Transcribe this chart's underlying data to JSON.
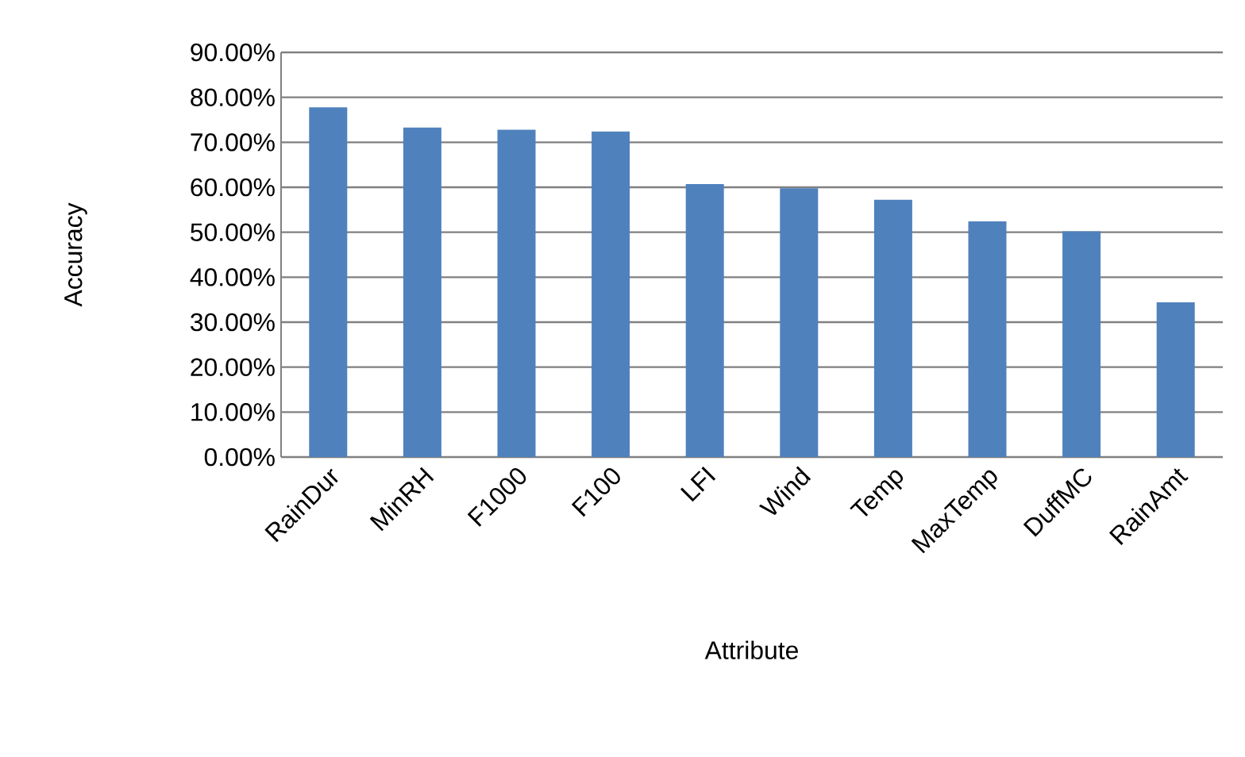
{
  "chart_data": {
    "type": "bar",
    "xlabel": "Attribute",
    "ylabel": "Accuracy",
    "categories": [
      "RainDur",
      "MinRH",
      "F1000",
      "F100",
      "LFI",
      "Wind",
      "Temp",
      "MaxTemp",
      "DuffMC",
      "RainAmt"
    ],
    "values": [
      77.8,
      73.3,
      72.8,
      72.4,
      60.7,
      59.8,
      57.2,
      52.4,
      50.2,
      34.4
    ],
    "color": "#4f81bd",
    "ylim": [
      0,
      90
    ],
    "yticks": [
      {
        "value": 0,
        "label": "0.00%"
      },
      {
        "value": 10,
        "label": "10.00%"
      },
      {
        "value": 20,
        "label": "20.00%"
      },
      {
        "value": 30,
        "label": "30.00%"
      },
      {
        "value": 40,
        "label": "40.00%"
      },
      {
        "value": 50,
        "label": "50.00%"
      },
      {
        "value": 60,
        "label": "60.00%"
      },
      {
        "value": 70,
        "label": "70.00%"
      },
      {
        "value": 80,
        "label": "80.00%"
      },
      {
        "value": 90,
        "label": "90.00%"
      }
    ],
    "grid": "y"
  }
}
